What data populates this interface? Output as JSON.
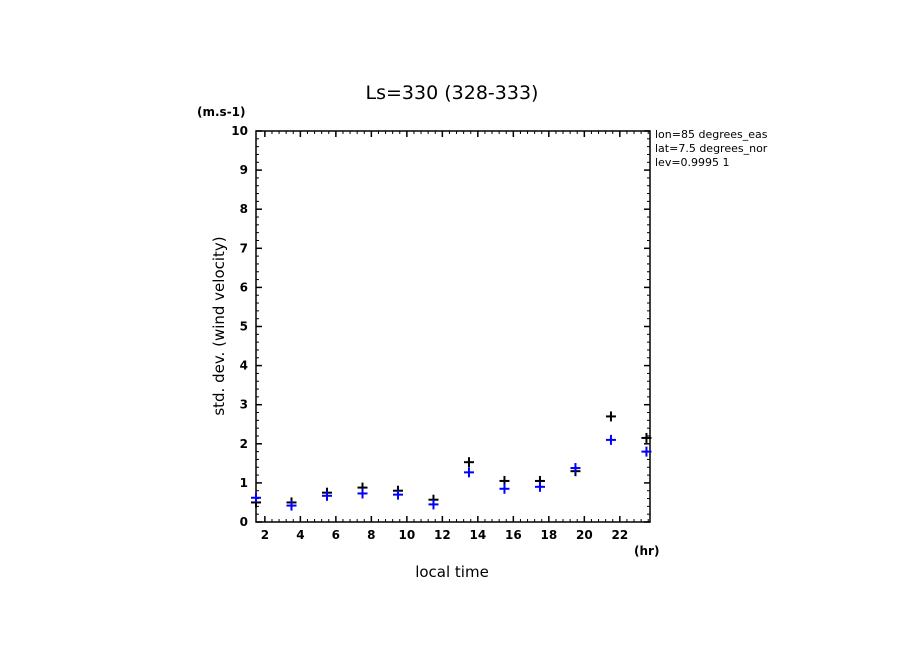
{
  "chart_data": {
    "type": "scatter",
    "title": "Ls=330 (328-333)",
    "ylabel": "std. dev. (wind velocity)",
    "xlabel": "local time",
    "yunit": "(m.s-1)",
    "xunit": "(hr)",
    "xlim": [
      1.5,
      23.7
    ],
    "ylim": [
      0,
      10
    ],
    "xticks": [
      2,
      4,
      6,
      8,
      10,
      12,
      14,
      16,
      18,
      20,
      22
    ],
    "yticks": [
      0,
      1,
      2,
      3,
      4,
      5,
      6,
      7,
      8,
      9,
      10
    ],
    "info_lines": [
      "lon=85 degrees_eas",
      "lat=7.5 degrees_nor",
      "lev=0.9995 1"
    ],
    "series": [
      {
        "color": "#000000",
        "marker": "plus",
        "points": [
          [
            1.5,
            0.5
          ],
          [
            3.5,
            0.5
          ],
          [
            5.5,
            0.75
          ],
          [
            7.5,
            0.88
          ],
          [
            9.5,
            0.8
          ],
          [
            11.5,
            0.57
          ],
          [
            13.5,
            1.53
          ],
          [
            15.5,
            1.05
          ],
          [
            17.5,
            1.05
          ],
          [
            19.5,
            1.3
          ],
          [
            21.5,
            2.7
          ],
          [
            23.5,
            2.15
          ]
        ]
      },
      {
        "color": "#0000ff",
        "marker": "plus",
        "points": [
          [
            1.5,
            0.62
          ],
          [
            3.5,
            0.42
          ],
          [
            5.5,
            0.67
          ],
          [
            7.5,
            0.73
          ],
          [
            9.5,
            0.7
          ],
          [
            11.5,
            0.45
          ],
          [
            13.5,
            1.27
          ],
          [
            15.5,
            0.85
          ],
          [
            17.5,
            0.9
          ],
          [
            19.5,
            1.38
          ],
          [
            21.5,
            2.1
          ],
          [
            23.5,
            1.8
          ]
        ]
      }
    ]
  }
}
